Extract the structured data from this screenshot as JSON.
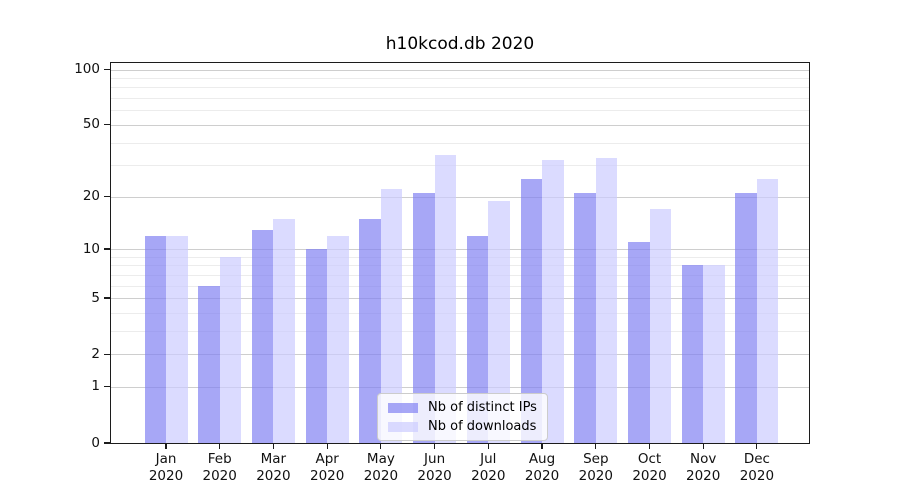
{
  "figure": {
    "title": "h10kcod.db 2020"
  },
  "chart_data": {
    "type": "bar",
    "title": "h10kcod.db 2020",
    "categories": [
      "Jan",
      "Feb",
      "Mar",
      "Apr",
      "May",
      "Jun",
      "Jul",
      "Aug",
      "Sep",
      "Oct",
      "Nov",
      "Dec"
    ],
    "x_tick_second_line": "2020",
    "series": [
      {
        "name": "Nb of distinct IPs",
        "color": "#8282f2",
        "values": [
          12,
          6,
          13,
          10,
          15,
          21,
          12,
          25,
          21,
          11,
          8,
          21
        ]
      },
      {
        "name": "Nb of downloads",
        "color": "#ccccff",
        "values": [
          12,
          9,
          15,
          12,
          22,
          34,
          19,
          32,
          33,
          17,
          8,
          25
        ]
      }
    ],
    "bar_alpha": 0.7,
    "xlabel": "",
    "ylabel": "",
    "yscale": "log1p",
    "ylim": [
      0,
      110
    ],
    "y_tick_labels": [
      100,
      50,
      20,
      10,
      5,
      2,
      1,
      0
    ],
    "y_major_grid": [
      1,
      2,
      5,
      10,
      20,
      50,
      100
    ],
    "y_minor_grid": [
      3,
      4,
      6,
      7,
      8,
      9,
      30,
      40,
      60,
      70,
      80,
      90
    ],
    "grid": true,
    "legend_position": "lower-center-inside"
  },
  "colors": {
    "ips_bar": "#8282f2",
    "downloads_bar": "#ccccff",
    "grid_minor": "#ececec",
    "grid_major": "#bdbdbd",
    "spine": "#1c1c1c",
    "background": "#ffffff",
    "text": "#000000"
  }
}
